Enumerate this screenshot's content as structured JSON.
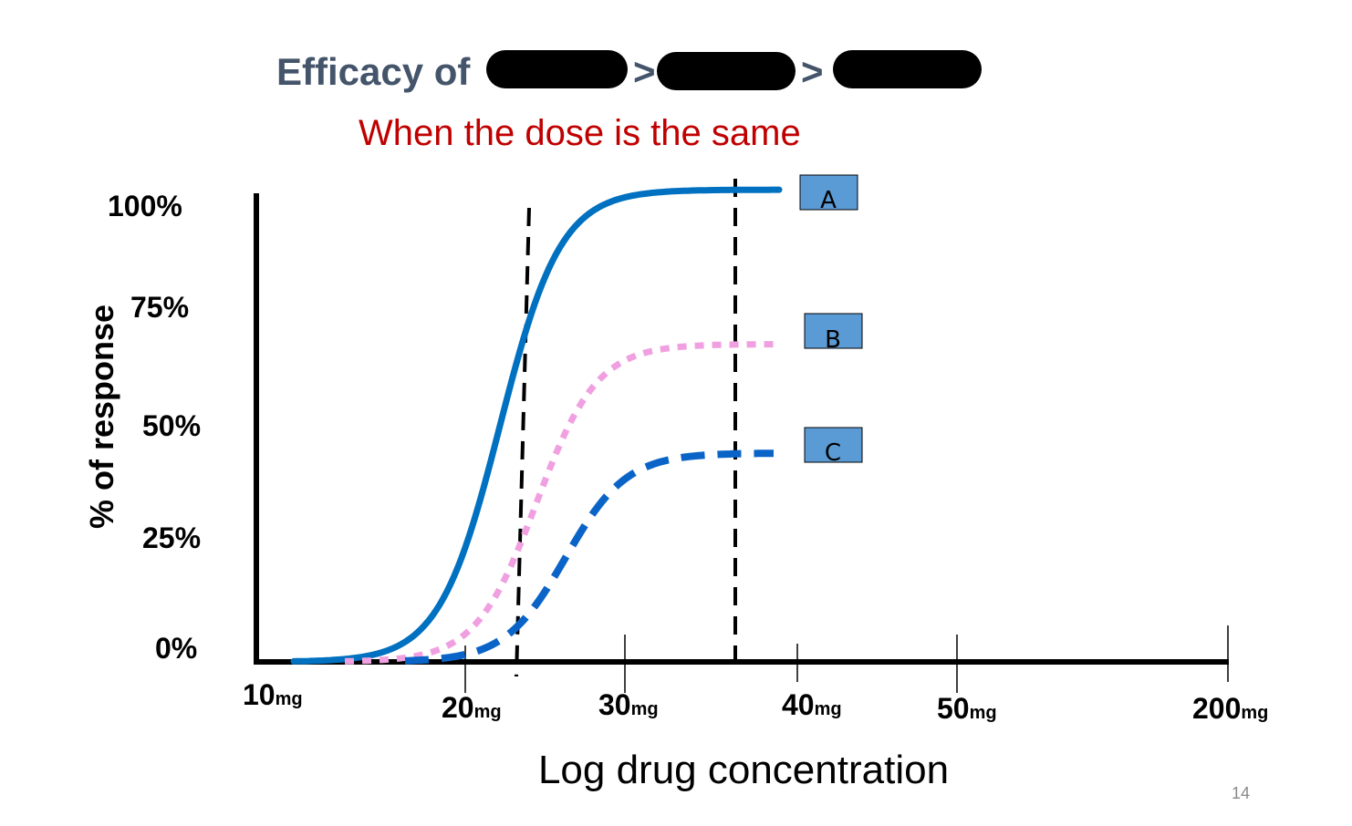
{
  "slide": {
    "title_prefix": "Efficacy of",
    "title_separator": ">",
    "subtitle": "When the dose is the same",
    "page_number": "14",
    "colors": {
      "title": "#44546a",
      "subtitle": "#c00000",
      "redaction": "#000000"
    }
  },
  "chart_data": {
    "type": "line",
    "title": "",
    "xlabel": "Log drug concentration",
    "ylabel": "% of response",
    "x_tick_labels": [
      {
        "value": "10",
        "unit": "mg"
      },
      {
        "value": "20",
        "unit": "mg"
      },
      {
        "value": "30",
        "unit": "mg"
      },
      {
        "value": "40",
        "unit": "mg"
      },
      {
        "value": "50",
        "unit": "mg"
      },
      {
        "value": "200",
        "unit": "mg"
      }
    ],
    "y_tick_labels": [
      "100%",
      "75%",
      "50%",
      "25%",
      "0%"
    ],
    "y_ticks": [
      100,
      75,
      50,
      25,
      0
    ],
    "ylim": [
      0,
      100
    ],
    "x_scale": "log",
    "grid": false,
    "reference_lines": [
      {
        "style": "dashed",
        "color": "#000000",
        "x_between": [
          "20mg",
          "30mg"
        ]
      },
      {
        "style": "dashed",
        "color": "#000000",
        "x_between": [
          "30mg",
          "40mg"
        ]
      }
    ],
    "series": [
      {
        "name": "A",
        "style": "solid",
        "color": "#0070c0",
        "label_box_color": "#5b9bd5",
        "max_response": 104
      },
      {
        "name": "B",
        "style": "dotted",
        "color": "#f0a0e0",
        "label_box_color": "#5b9bd5",
        "max_response": 70
      },
      {
        "name": "C",
        "style": "dashed",
        "color": "#0a64c8",
        "label_box_color": "#5b9bd5",
        "max_response": 46
      }
    ]
  }
}
